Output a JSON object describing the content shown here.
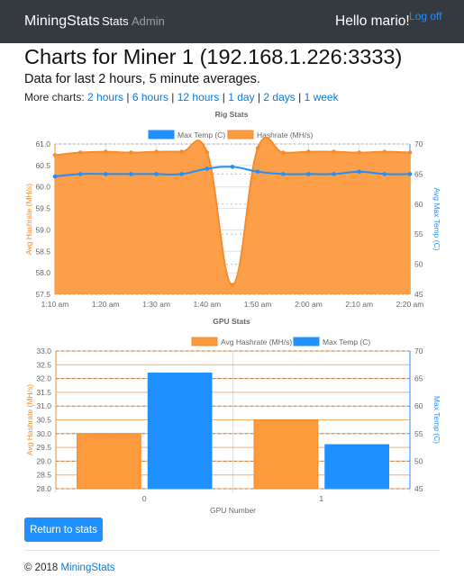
{
  "nav": {
    "brand": "MiningStats",
    "stats": "Stats",
    "admin": "Admin",
    "greeting": "Hello mario!",
    "logoff": "Log off"
  },
  "page": {
    "title": "Charts for Miner 1 (192.168.1.226:3333)",
    "subtitle": "Data for last 2 hours, 5 minute averages.",
    "more_label": "More charts:",
    "more_links": [
      "2 hours",
      "6 hours",
      "12 hours",
      "1 day",
      "2 days",
      "1 week"
    ]
  },
  "colors": {
    "orange": "#fd9a3e",
    "orange_line": "#f68b2b",
    "blue": "#1e90ff"
  },
  "chart_data": [
    {
      "type": "line",
      "title": "Rig Stats",
      "x": [
        "1:10 am",
        "1:15 am",
        "1:20 am",
        "1:25 am",
        "1:30 am",
        "1:35 am",
        "1:40 am",
        "1:45 am",
        "1:50 am",
        "1:55 am",
        "2:00 am",
        "2:05 am",
        "2:10 am",
        "2:15 am",
        "2:20 am"
      ],
      "x_tick_labels": [
        "1:10 am",
        "1:20 am",
        "1:30 am",
        "1:40 am",
        "1:50 am",
        "2:00 am",
        "2:10 am",
        "2:20 am"
      ],
      "series": [
        {
          "name": "Max Temp (C)",
          "axis": "right",
          "values": [
            64.6,
            65,
            65,
            65,
            65,
            65,
            65.9,
            66.2,
            65.4,
            65,
            65,
            65,
            65.4,
            65,
            65
          ]
        },
        {
          "name": "Hashrate (MH/s)",
          "axis": "left",
          "fill": true,
          "values": [
            60.74,
            60.8,
            60.82,
            60.8,
            60.82,
            60.82,
            60.8,
            57.72,
            60.9,
            60.8,
            60.82,
            60.82,
            60.8,
            60.82,
            60.8
          ]
        }
      ],
      "ylabel": "Avg Hashrate (MH/s)",
      "ylabel_right": "Avg Max Temp (C)",
      "ylim": [
        57.5,
        61.0
      ],
      "ylim_right": [
        45,
        70
      ],
      "yticks": [
        "57.5",
        "58.0",
        "58.5",
        "59.0",
        "59.5",
        "60.0",
        "60.5",
        "61.0"
      ],
      "yticks_right": [
        "45",
        "50",
        "55",
        "60",
        "65",
        "70"
      ],
      "legend": "top"
    },
    {
      "type": "bar",
      "title": "GPU Stats",
      "categories": [
        "0",
        "1"
      ],
      "series": [
        {
          "name": "Avg Hashrate (MH/s)",
          "axis": "left",
          "values": [
            30.0,
            30.5
          ]
        },
        {
          "name": "Max Temp (C)",
          "axis": "right",
          "values": [
            66,
            53
          ]
        }
      ],
      "xlabel": "GPU Number",
      "ylabel": "Avg Hashrate (MH/s)",
      "ylabel_right": "Max Temp (C)",
      "ylim": [
        28.0,
        33.0
      ],
      "ylim_right": [
        45,
        70
      ],
      "yticks": [
        "28.0",
        "28.5",
        "29.0",
        "29.5",
        "30.0",
        "30.5",
        "31.0",
        "31.5",
        "32.0",
        "32.5",
        "33.0"
      ],
      "yticks_right": [
        "45",
        "50",
        "55",
        "60",
        "65",
        "70"
      ],
      "legend": "top"
    }
  ],
  "actions": {
    "return": "Return to stats"
  },
  "footer": {
    "copyright": "© 2018",
    "brand": "MiningStats"
  }
}
